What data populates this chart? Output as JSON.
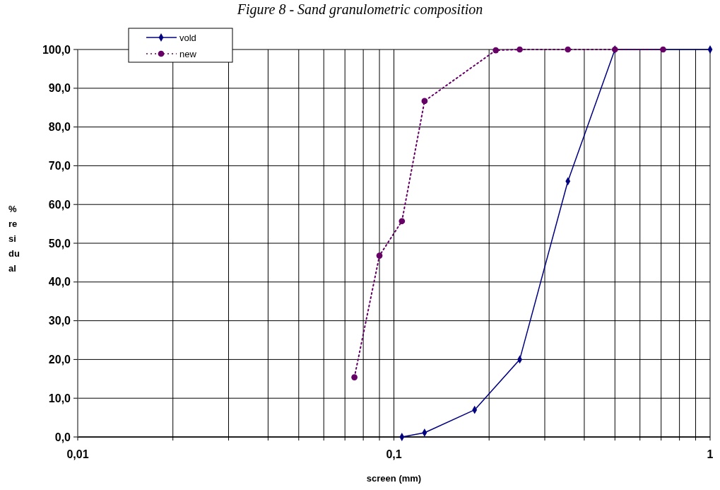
{
  "chart_data": {
    "type": "line",
    "title": "Figure 8 - Sand granulometric composition",
    "xlabel": "screen (mm)",
    "ylabel": "% residual",
    "log": "x",
    "xlim": [
      0.01,
      1
    ],
    "ylim": [
      0,
      100
    ],
    "xticks": [
      {
        "value": 0.01,
        "label": "0,01"
      },
      {
        "value": 0.02,
        "label": null
      },
      {
        "value": 0.03,
        "label": null
      },
      {
        "value": 0.04,
        "label": null
      },
      {
        "value": 0.05,
        "label": null
      },
      {
        "value": 0.06,
        "label": null
      },
      {
        "value": 0.07,
        "label": null
      },
      {
        "value": 0.08,
        "label": null
      },
      {
        "value": 0.09,
        "label": null
      },
      {
        "value": 0.1,
        "label": "0,1"
      },
      {
        "value": 0.2,
        "label": null
      },
      {
        "value": 0.3,
        "label": null
      },
      {
        "value": 0.4,
        "label": null
      },
      {
        "value": 0.5,
        "label": null
      },
      {
        "value": 0.6,
        "label": null
      },
      {
        "value": 0.7,
        "label": null
      },
      {
        "value": 0.8,
        "label": null
      },
      {
        "value": 0.9,
        "label": null
      },
      {
        "value": 1,
        "label": "1"
      }
    ],
    "yticks": [
      {
        "value": 0,
        "label": "0,0"
      },
      {
        "value": 10,
        "label": "10,0"
      },
      {
        "value": 20,
        "label": "20,0"
      },
      {
        "value": 30,
        "label": "30,0"
      },
      {
        "value": 40,
        "label": "40,0"
      },
      {
        "value": 50,
        "label": "50,0"
      },
      {
        "value": 60,
        "label": "60,0"
      },
      {
        "value": 70,
        "label": "70,0"
      },
      {
        "value": 80,
        "label": "80,0"
      },
      {
        "value": 90,
        "label": "90,0"
      },
      {
        "value": 100,
        "label": "100,0"
      }
    ],
    "grid": true,
    "legend": "top left",
    "series": [
      {
        "name": "vold",
        "color": "#000080",
        "marker": "diamond",
        "line_style": "solid",
        "x": [
          0.106,
          0.125,
          0.18,
          0.25,
          0.355,
          0.5,
          1
        ],
        "values": [
          0,
          1.1,
          7,
          20,
          66,
          100,
          100
        ]
      },
      {
        "name": "new",
        "color": "#660066",
        "marker": "circle",
        "line_style": "dotted",
        "x": [
          0.075,
          0.09,
          0.106,
          0.125,
          0.21,
          0.25,
          0.355,
          0.5,
          0.71
        ],
        "values": [
          15.4,
          46.8,
          55.7,
          86.7,
          99.8,
          100,
          100,
          100,
          100
        ]
      }
    ]
  }
}
